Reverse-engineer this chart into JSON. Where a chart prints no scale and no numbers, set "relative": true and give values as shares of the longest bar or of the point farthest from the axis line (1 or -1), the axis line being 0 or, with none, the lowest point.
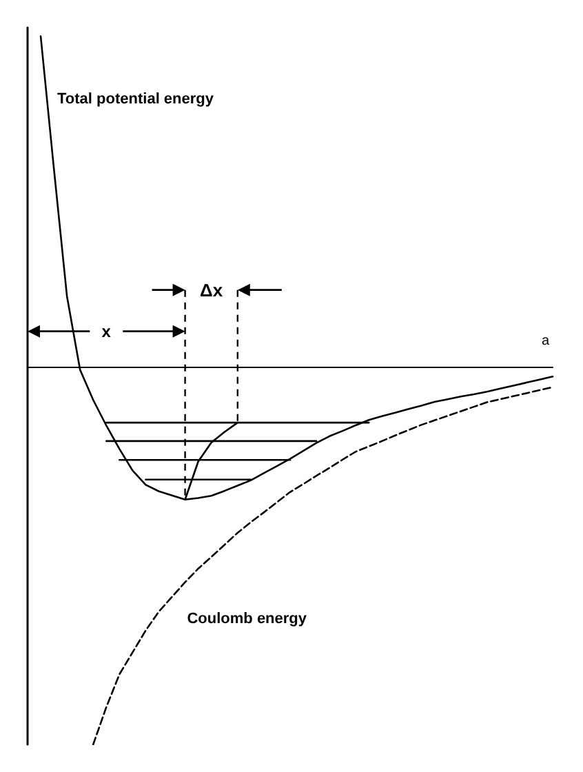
{
  "chart_data": {
    "type": "line",
    "relative": true,
    "xlabel": "a",
    "grid": false,
    "legend": false,
    "marker": "none",
    "categories": [
      null,
      null,
      null,
      null,
      null,
      null,
      null,
      null,
      null,
      null,
      null,
      null,
      null,
      null,
      null,
      null,
      null,
      null,
      null,
      null,
      null,
      null,
      null,
      null,
      null,
      null,
      null,
      null,
      null,
      null,
      null,
      null,
      null,
      null,
      null,
      null,
      null,
      null,
      null,
      null,
      null
    ],
    "annotations": [
      "x",
      "Δx"
    ],
    "series": [
      {
        "name": "Total potential energy",
        "color": "#000000",
        "line_style": "solid",
        "values": [
          null,
          0.877,
          0.528,
          0.188,
          -0.007,
          -0.087,
          -0.155,
          -0.217,
          -0.274,
          -0.312,
          -0.329,
          -0.34,
          -0.351,
          -0.347,
          -0.341,
          -0.328,
          -0.314,
          -0.3,
          -0.281,
          -0.262,
          -0.243,
          -0.222,
          -0.201,
          -0.183,
          -0.169,
          -0.154,
          -0.14,
          -0.13,
          -0.121,
          -0.111,
          -0.102,
          -0.092,
          -0.085,
          -0.078,
          -0.072,
          -0.065,
          -0.057,
          -0.049,
          -0.041,
          -0.033,
          -0.025
        ]
      },
      {
        "name": "Coulomb energy",
        "color": "#000000",
        "line_style": "dashed",
        "values": [
          null,
          null,
          null,
          null,
          null,
          -1.0,
          -0.901,
          -0.814,
          -0.756,
          -0.698,
          -0.648,
          -0.609,
          -0.57,
          -0.534,
          -0.503,
          -0.471,
          -0.439,
          -0.411,
          -0.385,
          -0.358,
          -0.331,
          -0.31,
          -0.288,
          -0.267,
          -0.245,
          -0.224,
          -0.21,
          -0.196,
          -0.181,
          -0.167,
          -0.153,
          -0.141,
          -0.129,
          -0.117,
          -0.105,
          -0.093,
          -0.085,
          -0.077,
          -0.069,
          -0.061,
          -0.053
        ]
      },
      {
        "color": "#000000",
        "line_style": "solid",
        "values": [
          null,
          null,
          null,
          null,
          null,
          null,
          -0.147,
          -0.147,
          -0.147,
          -0.147,
          -0.147,
          -0.147,
          -0.147,
          -0.147,
          -0.147,
          -0.147,
          -0.147,
          -0.147,
          -0.147,
          -0.147,
          -0.147,
          -0.147,
          -0.147,
          -0.147,
          -0.147,
          -0.147,
          -0.147,
          null,
          null,
          null,
          null,
          null,
          null,
          null,
          null,
          null,
          null,
          null,
          null,
          null,
          null
        ]
      },
      {
        "color": "#000000",
        "line_style": "solid",
        "values": [
          null,
          null,
          null,
          null,
          null,
          null,
          -0.196,
          -0.196,
          -0.196,
          -0.196,
          -0.196,
          -0.196,
          -0.196,
          -0.196,
          -0.196,
          -0.196,
          -0.196,
          -0.196,
          -0.196,
          -0.196,
          -0.196,
          -0.196,
          -0.196,
          null,
          null,
          null,
          null,
          null,
          null,
          null,
          null,
          null,
          null,
          null,
          null,
          null,
          null,
          null,
          null,
          null,
          null
        ]
      },
      {
        "color": "#000000",
        "line_style": "solid",
        "values": [
          null,
          null,
          null,
          null,
          null,
          null,
          null,
          -0.246,
          -0.246,
          -0.246,
          -0.246,
          -0.246,
          -0.246,
          -0.246,
          -0.246,
          -0.246,
          -0.246,
          -0.246,
          -0.246,
          -0.246,
          -0.246,
          null,
          null,
          null,
          null,
          null,
          null,
          null,
          null,
          null,
          null,
          null,
          null,
          null,
          null,
          null,
          null,
          null,
          null,
          null,
          null
        ]
      },
      {
        "color": "#000000",
        "line_style": "solid",
        "values": [
          null,
          null,
          null,
          null,
          null,
          null,
          null,
          null,
          null,
          -0.298,
          -0.298,
          -0.298,
          -0.298,
          -0.298,
          -0.298,
          -0.298,
          -0.298,
          -0.298,
          null,
          null,
          null,
          null,
          null,
          null,
          null,
          null,
          null,
          null,
          null,
          null,
          null,
          null,
          null,
          null,
          null,
          null,
          null,
          null,
          null,
          null,
          null
        ]
      },
      {
        "color": "#000000",
        "line_style": "solid",
        "values": [
          null,
          null,
          null,
          null,
          null,
          null,
          null,
          null,
          null,
          null,
          null,
          null,
          -0.351,
          -0.25,
          -0.2,
          -0.172,
          -0.147,
          null,
          null,
          null,
          null,
          null,
          null,
          null,
          null,
          null,
          null,
          null,
          null,
          null,
          null,
          null,
          null,
          null,
          null,
          null,
          null,
          null,
          null,
          null,
          null
        ]
      }
    ]
  }
}
